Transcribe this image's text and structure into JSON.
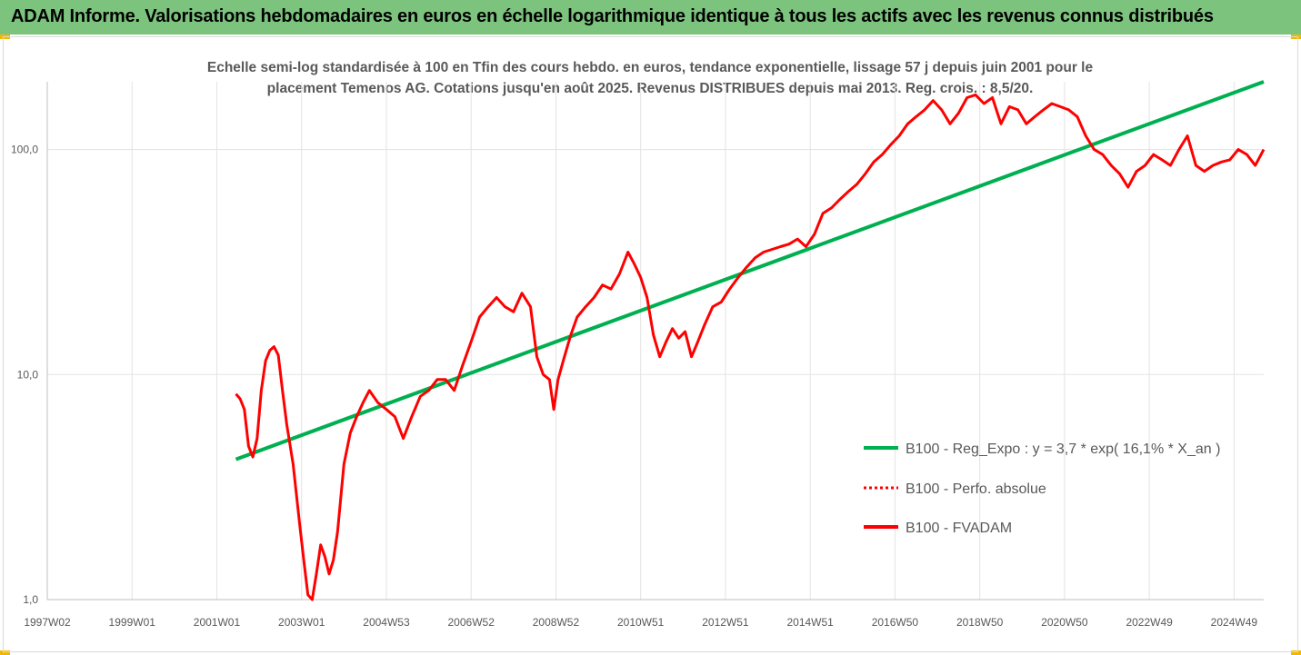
{
  "header": {
    "title": "ADAM Informe. Valorisations hebdomadaires en euros en échelle logarithmique identique à tous les actifs avec les revenus connus distribués"
  },
  "chart_data": {
    "type": "line",
    "subtitle_line1": "Echelle semi-log standardisée à 100 en Tfin des cours hebdo. en euros, tendance exponentielle, lissage 57 j depuis juin 2001 pour le",
    "subtitle_line2": "placement Temenos AG. Cotations jusqu'en août 2025. Revenus DISTRIBUES depuis mai 2013. Reg. crois. : 8,5/20.",
    "y_scale": "log",
    "ylim": [
      1,
      200
    ],
    "y_ticks": [
      {
        "value": 1,
        "label": "1,0"
      },
      {
        "value": 10,
        "label": "10,0"
      },
      {
        "value": 100,
        "label": "100,0"
      }
    ],
    "xlim": [
      1997.0,
      2025.7
    ],
    "x_ticks": [
      {
        "value": 1997.0,
        "label": "1997W02"
      },
      {
        "value": 1999.0,
        "label": "1999W01"
      },
      {
        "value": 2001.0,
        "label": "2001W01"
      },
      {
        "value": 2003.0,
        "label": "2003W01"
      },
      {
        "value": 2005.0,
        "label": "2004W53"
      },
      {
        "value": 2007.0,
        "label": "2006W52"
      },
      {
        "value": 2009.0,
        "label": "2008W52"
      },
      {
        "value": 2011.0,
        "label": "2010W51"
      },
      {
        "value": 2013.0,
        "label": "2012W51"
      },
      {
        "value": 2015.0,
        "label": "2014W51"
      },
      {
        "value": 2017.0,
        "label": "2016W50"
      },
      {
        "value": 2019.0,
        "label": "2018W50"
      },
      {
        "value": 2021.0,
        "label": "2020W50"
      },
      {
        "value": 2023.0,
        "label": "2022W49"
      },
      {
        "value": 2025.0,
        "label": "2024W49"
      }
    ],
    "grid": "vertical",
    "legend_position": "right",
    "series": [
      {
        "name": "B100 - Reg_Expo : y = 3,7 * exp( 16,1% *  X_an )",
        "color": "#00b050",
        "style": "solid",
        "x": [
          2001.45,
          2025.7
        ],
        "y": [
          4.2,
          200
        ]
      },
      {
        "name": "B100 - Perfo. absolue",
        "color": "#ff0000",
        "style": "dotted",
        "x": [],
        "y": []
      },
      {
        "name": "B100 - FVADAM",
        "color": "#ff0000",
        "style": "solid",
        "x": [
          2001.45,
          2001.55,
          2001.65,
          2001.75,
          2001.85,
          2001.95,
          2002.05,
          2002.15,
          2002.25,
          2002.35,
          2002.45,
          2002.55,
          2002.65,
          2002.8,
          2002.95,
          2003.05,
          2003.15,
          2003.25,
          2003.35,
          2003.45,
          2003.55,
          2003.65,
          2003.75,
          2003.85,
          2004.0,
          2004.15,
          2004.3,
          2004.45,
          2004.6,
          2004.8,
          2005.0,
          2005.2,
          2005.4,
          2005.6,
          2005.8,
          2006.0,
          2006.2,
          2006.4,
          2006.6,
          2006.8,
          2007.0,
          2007.2,
          2007.4,
          2007.6,
          2007.8,
          2008.0,
          2008.2,
          2008.4,
          2008.55,
          2008.7,
          2008.85,
          2008.95,
          2009.05,
          2009.2,
          2009.35,
          2009.5,
          2009.7,
          2009.9,
          2010.1,
          2010.3,
          2010.5,
          2010.7,
          2010.85,
          2011.0,
          2011.15,
          2011.3,
          2011.45,
          2011.6,
          2011.75,
          2011.9,
          2012.05,
          2012.2,
          2012.35,
          2012.5,
          2012.7,
          2012.9,
          2013.1,
          2013.3,
          2013.5,
          2013.7,
          2013.9,
          2014.1,
          2014.3,
          2014.5,
          2014.7,
          2014.9,
          2015.1,
          2015.3,
          2015.5,
          2015.7,
          2015.9,
          2016.1,
          2016.3,
          2016.5,
          2016.7,
          2016.9,
          2017.1,
          2017.3,
          2017.5,
          2017.7,
          2017.9,
          2018.1,
          2018.3,
          2018.5,
          2018.7,
          2018.9,
          2019.1,
          2019.3,
          2019.5,
          2019.7,
          2019.9,
          2020.1,
          2020.3,
          2020.5,
          2020.7,
          2020.9,
          2021.1,
          2021.3,
          2021.5,
          2021.7,
          2021.9,
          2022.1,
          2022.3,
          2022.5,
          2022.7,
          2022.9,
          2023.1,
          2023.3,
          2023.5,
          2023.7,
          2023.9,
          2024.1,
          2024.3,
          2024.5,
          2024.7,
          2024.9,
          2025.1,
          2025.3,
          2025.5,
          2025.7
        ],
        "y": [
          8.2,
          7.8,
          7.0,
          4.8,
          4.3,
          5.2,
          8.5,
          11.5,
          12.8,
          13.3,
          12.2,
          8.5,
          6.0,
          4.0,
          2.2,
          1.5,
          1.05,
          1.0,
          1.3,
          1.75,
          1.55,
          1.3,
          1.5,
          2.0,
          4.0,
          5.5,
          6.5,
          7.5,
          8.5,
          7.5,
          7.0,
          6.5,
          5.2,
          6.5,
          8.0,
          8.5,
          9.5,
          9.5,
          8.5,
          11.0,
          14.0,
          18.0,
          20.0,
          22.0,
          20.0,
          19.0,
          23.0,
          20.0,
          12.0,
          10.0,
          9.5,
          7.0,
          9.5,
          12.0,
          15.0,
          18.0,
          20.0,
          22.0,
          25.0,
          24.0,
          28.0,
          35.0,
          31.0,
          27.0,
          22.0,
          15.0,
          12.0,
          14.0,
          16.0,
          14.5,
          15.5,
          12.0,
          14.0,
          16.5,
          20.0,
          21.0,
          24.0,
          27.0,
          30.0,
          33.0,
          35.0,
          36.0,
          37.0,
          38.0,
          40.0,
          37.0,
          42.0,
          52.0,
          55.0,
          60.0,
          65.0,
          70.0,
          78.0,
          88.0,
          95.0,
          105.0,
          115.0,
          130.0,
          140.0,
          150.0,
          165.0,
          150.0,
          130.0,
          145.0,
          170.0,
          175.0,
          160.0,
          170.0,
          130.0,
          155.0,
          150.0,
          130.0,
          140.0,
          150.0,
          160.0,
          155.0,
          150.0,
          140.0,
          115.0,
          100.0,
          95.0,
          85.0,
          78.0,
          68.0,
          80.0,
          85.0,
          95.0,
          90.0,
          85.0,
          100.0,
          115.0,
          85.0,
          80.0,
          85.0,
          88.0,
          90.0,
          100.0,
          95.0,
          85.0,
          100.0
        ]
      }
    ]
  }
}
